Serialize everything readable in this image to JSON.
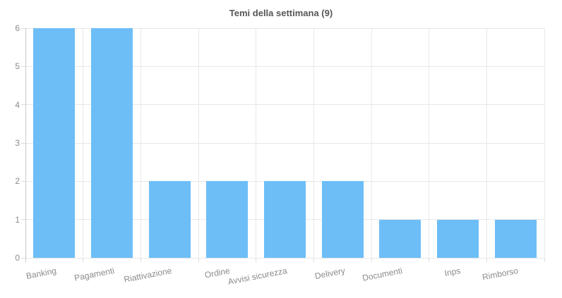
{
  "chart_data": {
    "type": "bar",
    "title": "Temi della settimana (9)",
    "categories": [
      "Banking",
      "Pagamenti",
      "Riattivazione",
      "Ordine",
      "Avvisi sicurezza",
      "Delivery",
      "Documenti",
      "Inps",
      "Rimborso"
    ],
    "values": [
      6,
      6,
      2,
      2,
      2,
      2,
      1,
      1,
      1
    ],
    "xlabel": "",
    "ylabel": "",
    "ylim": [
      0,
      6
    ],
    "y_ticks": [
      0,
      1,
      2,
      3,
      4,
      5,
      6
    ],
    "grid": true,
    "legend_position": "none",
    "x_label_rotation_deg": -11,
    "colors": {
      "bar_fill": "#6dbef7",
      "gridline": "#e8e8e8",
      "axis_line": "#c9c9c9",
      "tick_mark": "#dddddd",
      "title_text": "#565656",
      "tick_label_text": "#8b8b8b",
      "background": "#ffffff"
    }
  }
}
